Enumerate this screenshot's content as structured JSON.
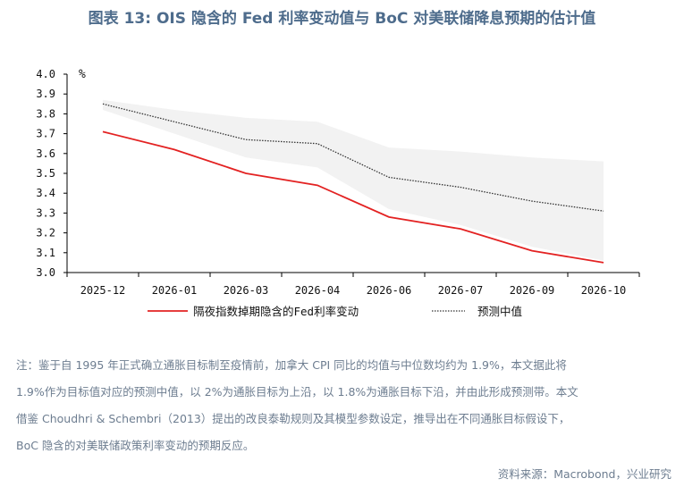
{
  "title": "图表 13: OIS 隐含的 Fed 利率变动值与 BoC 对美联储降息预期的估计值",
  "chart_data": {
    "type": "line",
    "ylabel": "%",
    "ylim": [
      3.0,
      4.0
    ],
    "yticks": [
      "3.0",
      "3.1",
      "3.2",
      "3.3",
      "3.4",
      "3.5",
      "3.6",
      "3.7",
      "3.8",
      "3.9",
      "4.0"
    ],
    "categories": [
      "2025-12",
      "2026-01",
      "2026-03",
      "2026-04",
      "2026-06",
      "2026-07",
      "2026-09",
      "2026-10"
    ],
    "series": [
      {
        "name": "隔夜指数掉期隐含的Fed利率变动",
        "style": "solid",
        "color": "#e32222",
        "values": [
          3.71,
          3.62,
          3.5,
          3.44,
          3.28,
          3.22,
          3.11,
          3.05
        ]
      },
      {
        "name": "预测中值",
        "style": "dotted",
        "color": "#333333",
        "values": [
          3.85,
          3.76,
          3.67,
          3.65,
          3.48,
          3.43,
          3.36,
          3.31
        ]
      }
    ],
    "band": {
      "color": "#f2f2f2",
      "upper": [
        3.87,
        3.82,
        3.78,
        3.76,
        3.63,
        3.61,
        3.58,
        3.56
      ],
      "lower": [
        3.82,
        3.7,
        3.58,
        3.53,
        3.32,
        3.24,
        3.13,
        3.06
      ]
    },
    "legend_position": "bottom",
    "grid": false
  },
  "notes": [
    "注：鉴于自 1995 年正式确立通胀目标制至疫情前，加拿大 CPI 同比的均值与中位数均约为 1.9%，本文据此将",
    "1.9%作为目标值对应的预测中值，以 2%为通胀目标为上沿，以 1.8%为通胀目标下沿，并由此形成预测带。本文",
    "借鉴  Choudhri & Schembri（2013）提出的改良泰勒规则及其模型参数设定，推导出在不同通胀目标假设下，",
    "BoC  隐含的对美联储政策利率变动的预期反应。"
  ],
  "source": "资料来源：Macrobond，兴业研究"
}
